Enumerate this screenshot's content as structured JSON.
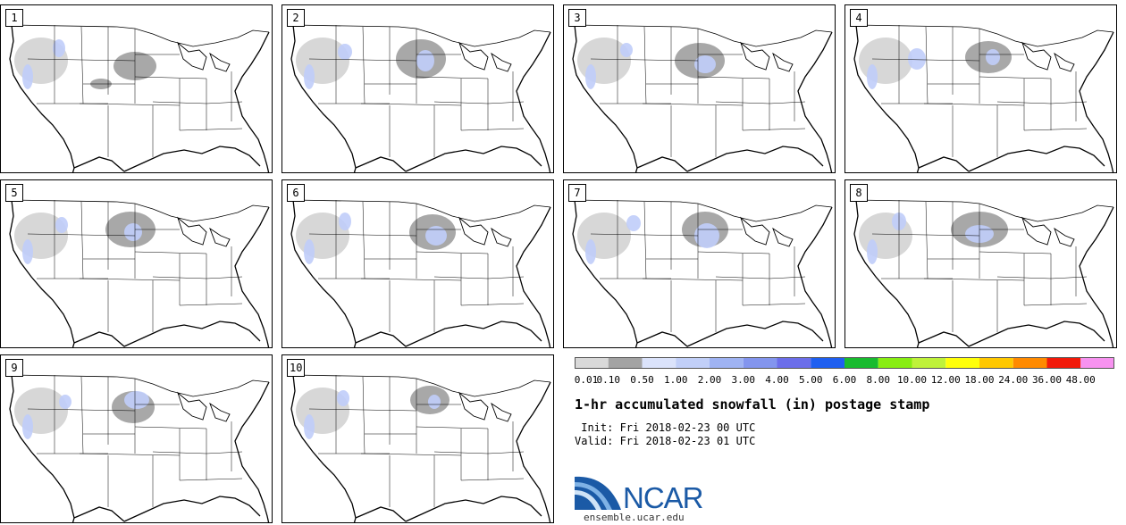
{
  "panels": [
    {
      "label": "1"
    },
    {
      "label": "2"
    },
    {
      "label": "3"
    },
    {
      "label": "4"
    },
    {
      "label": "5"
    },
    {
      "label": "6"
    },
    {
      "label": "7"
    },
    {
      "label": "8"
    },
    {
      "label": "9"
    },
    {
      "label": "10"
    }
  ],
  "colorbar": {
    "levels": [
      "0.01",
      "0.10",
      "0.50",
      "1.00",
      "2.00",
      "3.00",
      "4.00",
      "5.00",
      "6.00",
      "8.00",
      "10.00",
      "12.00",
      "18.00",
      "24.00",
      "36.00",
      "48.00"
    ],
    "colors": [
      "#d9d9d9",
      "#a3a3a3",
      "#dbe3fb",
      "#c1cff8",
      "#9fb3f3",
      "#8395ee",
      "#6c6eea",
      "#1f5ff0",
      "#19bb2f",
      "#88ee12",
      "#bff23a",
      "#ffff0a",
      "#ffc800",
      "#ff8a00",
      "#f21a0a",
      "#f792f0"
    ]
  },
  "colors": {
    "snow_light": "#d3d3d3",
    "snow_mid": "#9e9e9e",
    "snow_blue": "#c0cdf9",
    "map_lines": "#000000"
  },
  "title": "1-hr accumulated snowfall (in) postage stamp",
  "init_line": " Init: Fri 2018-02-23 00 UTC",
  "valid_line": "Valid: Fri 2018-02-23 01 UTC",
  "logo_text": "NCAR",
  "site": "ensemble.ucar.edu"
}
